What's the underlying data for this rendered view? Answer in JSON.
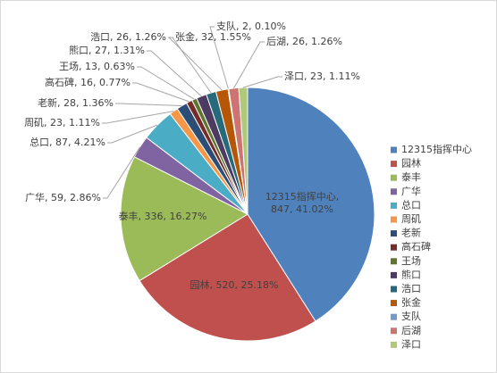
{
  "chart_data": {
    "type": "pie",
    "categories": [
      "12315指挥中心",
      "园林",
      "泰丰",
      "广华",
      "总口",
      "周矶",
      "老新",
      "高石碑",
      "王场",
      "熊口",
      "浩口",
      "张金",
      "支队",
      "后湖",
      "泽口"
    ],
    "values": [
      847,
      520,
      336,
      59,
      87,
      23,
      28,
      16,
      13,
      27,
      26,
      32,
      2,
      26,
      23
    ],
    "value_labels": [
      "12315指挥中心, 847, 41.02%",
      "园林, 520, 25.18%",
      "泰丰, 336, 16.27%",
      "广华, 59, 2.86%",
      "总口, 87, 4.21%",
      "周矶, 23, 1.11%",
      "老新, 28, 1.36%",
      "高石碑, 16, 0.77%",
      "王场, 13, 0.63%",
      "熊口, 27, 1.31%",
      "浩口, 26, 1.26%",
      "张金, 32, 1.55%",
      "支队, 2, 0.10%",
      "后湖, 26, 1.26%",
      "泽口, 23, 1.11%"
    ],
    "colors": [
      "#4f81bd",
      "#c0504d",
      "#9bbb59",
      "#8064a2",
      "#4bacc6",
      "#f79646",
      "#2c4d75",
      "#772c2a",
      "#5f7530",
      "#4d3b62",
      "#276a7c",
      "#b65708",
      "#729aca",
      "#cd7371",
      "#afc97a"
    ],
    "legend": "right"
  }
}
